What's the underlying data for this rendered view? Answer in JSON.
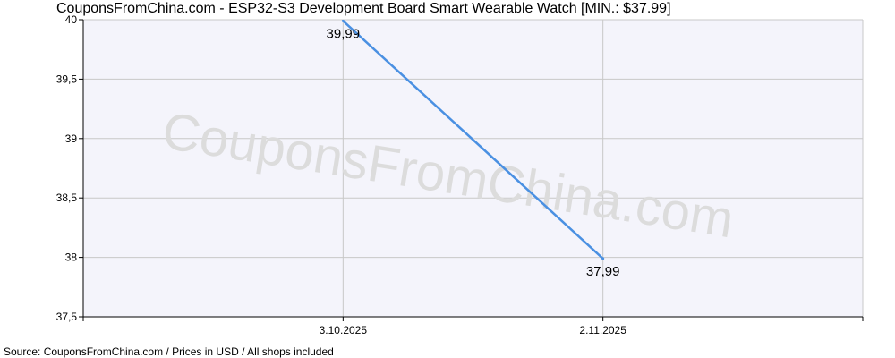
{
  "chart_data": {
    "type": "line",
    "title": "CouponsFromChina.com - ESP32-S3 Development Board Smart Wearable Watch [MIN.: $37.99]",
    "footer": "Source: CouponsFromChina.com / Prices in USD / All shops included",
    "watermark": "CouponsFromChina.com",
    "x_categories": [
      "",
      "3.10.2025",
      "2.11.2025",
      ""
    ],
    "y_ticks": [
      "40",
      "39,5",
      "39",
      "38,5",
      "38",
      "37,5"
    ],
    "y_tick_values": [
      40,
      39.5,
      39,
      38.5,
      38,
      37.5
    ],
    "ylim": [
      37.5,
      40
    ],
    "grid": true,
    "series": [
      {
        "color": "#4a90e2",
        "points": [
          {
            "x_index": 1,
            "x": "3.10.2025",
            "y": 39.99,
            "label": "39,99"
          },
          {
            "x_index": 2,
            "x": "2.11.2025",
            "y": 37.99,
            "label": "37,99"
          }
        ]
      }
    ],
    "colors": {
      "plot_bg": "#f4f4fb",
      "grid": "#c8c8c8",
      "axis": "#000000",
      "line": "#4a90e2",
      "watermark": "#dcdcdc"
    }
  }
}
